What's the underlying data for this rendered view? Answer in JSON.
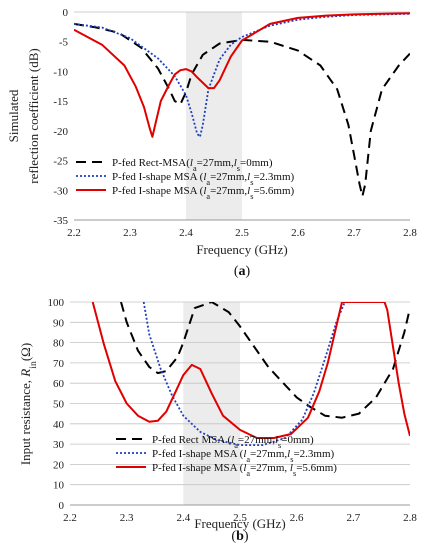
{
  "chart_data": [
    {
      "panel_label": [
        "(",
        "a",
        ")"
      ],
      "type": "line",
      "xlabel": "Frequency (GHz)",
      "ylabel": [
        "Simulated",
        "reflection coefficient (dB)"
      ],
      "xlim": [
        2.2,
        2.8
      ],
      "ylim": [
        -35,
        0
      ],
      "xticks": [
        "2.2",
        "2.3",
        "2.4",
        "2.5",
        "2.6",
        "2.7",
        "2.8"
      ],
      "yticks": [
        "0",
        "-5",
        "-10",
        "-15",
        "-20",
        "-25",
        "-30",
        "-35"
      ],
      "highlight_band": [
        2.4,
        2.5
      ],
      "grid": false,
      "legend_position": "bottom-left",
      "series": [
        {
          "name": [
            {
              "text": "P-fed Rect-MSA(",
              "style": "normal"
            },
            {
              "text": "l",
              "style": "italic"
            },
            {
              "text": "a",
              "style": "sub"
            },
            {
              "text": "=27mm,",
              "style": "normal"
            },
            {
              "text": "l",
              "style": "italic"
            },
            {
              "text": "s",
              "style": "sub"
            },
            {
              "text": "=0mm)",
              "style": "normal"
            }
          ],
          "color": "#000000",
          "dash": "long-dash",
          "x": [
            2.2,
            2.24,
            2.28,
            2.32,
            2.35,
            2.37,
            2.38,
            2.39,
            2.4,
            2.41,
            2.43,
            2.46,
            2.5,
            2.55,
            2.6,
            2.64,
            2.67,
            2.69,
            2.7,
            2.71,
            2.715,
            2.72,
            2.73,
            2.75,
            2.78,
            2.8
          ],
          "y": [
            -2,
            -2.6,
            -3.5,
            -6,
            -9.5,
            -13,
            -15,
            -15.5,
            -13.5,
            -10.5,
            -7.2,
            -5.3,
            -4.7,
            -5,
            -6.5,
            -9,
            -13,
            -19,
            -24,
            -29,
            -31,
            -29,
            -20,
            -13,
            -9,
            -7
          ]
        },
        {
          "name": [
            {
              "text": "P-fed I-shape MSA (",
              "style": "normal"
            },
            {
              "text": "l",
              "style": "italic"
            },
            {
              "text": "a",
              "style": "sub"
            },
            {
              "text": "=27mm,",
              "style": "normal"
            },
            {
              "text": "l",
              "style": "italic"
            },
            {
              "text": "s",
              "style": "sub"
            },
            {
              "text": "=2.3mm)",
              "style": "normal"
            }
          ],
          "color": "#1f3fbf",
          "dash": "dotted",
          "x": [
            2.2,
            2.25,
            2.3,
            2.35,
            2.38,
            2.4,
            2.41,
            2.42,
            2.425,
            2.43,
            2.44,
            2.46,
            2.48,
            2.5,
            2.55,
            2.6,
            2.65,
            2.7,
            2.75,
            2.8
          ],
          "y": [
            -2,
            -2.6,
            -4.4,
            -7.8,
            -10.8,
            -14,
            -17,
            -20.5,
            -21,
            -19,
            -13,
            -8,
            -5.5,
            -4.2,
            -2.3,
            -1.3,
            -0.8,
            -0.5,
            -0.4,
            -0.3
          ]
        },
        {
          "name": [
            {
              "text": "P-fed I-shape MSA (",
              "style": "normal"
            },
            {
              "text": "l",
              "style": "italic"
            },
            {
              "text": "a",
              "style": "sub"
            },
            {
              "text": "=27mm,",
              "style": "normal"
            },
            {
              "text": "l",
              "style": "italic"
            },
            {
              "text": "s",
              "style": "sub"
            },
            {
              "text": "=5.6mm)",
              "style": "normal"
            }
          ],
          "color": "#e00000",
          "dash": "solid",
          "x": [
            2.2,
            2.25,
            2.29,
            2.31,
            2.325,
            2.335,
            2.34,
            2.345,
            2.355,
            2.37,
            2.38,
            2.39,
            2.4,
            2.41,
            2.42,
            2.44,
            2.45,
            2.46,
            2.48,
            2.5,
            2.55,
            2.6,
            2.65,
            2.7,
            2.75,
            2.8
          ],
          "y": [
            -3,
            -5.5,
            -9,
            -12.5,
            -16,
            -19.5,
            -21,
            -19,
            -15,
            -12.2,
            -10.5,
            -9.8,
            -9.6,
            -10,
            -11,
            -12.8,
            -12.8,
            -11.5,
            -7.5,
            -4.8,
            -2,
            -1,
            -0.6,
            -0.4,
            -0.3,
            -0.2
          ]
        }
      ]
    },
    {
      "panel_label": [
        "(",
        "b",
        ")"
      ],
      "type": "line",
      "xlabel": "Frequency (GHz)",
      "ylabel": [
        {
          "text": "Input resistance, ",
          "style": "normal"
        },
        {
          "text": "R",
          "style": "italic"
        },
        {
          "text": "in",
          "style": "sub"
        },
        {
          "text": "(Ω)",
          "style": "normal"
        }
      ],
      "xlim": [
        2.2,
        2.8
      ],
      "ylim": [
        0,
        100
      ],
      "xticks": [
        "2.2",
        "2.3",
        "2.4",
        "2.5",
        "2.6",
        "2.7",
        "2.8"
      ],
      "yticks": [
        "0",
        "10",
        "20",
        "30",
        "40",
        "50",
        "60",
        "70",
        "80",
        "90",
        "100"
      ],
      "highlight_band": [
        2.4,
        2.5
      ],
      "grid": true,
      "legend_position": "bottom-center",
      "series": [
        {
          "name": [
            {
              "text": "P-fed Rect MSA (",
              "style": "normal"
            },
            {
              "text": "l",
              "style": "italic"
            },
            {
              "text": "a",
              "style": "sub"
            },
            {
              "text": "=27mm,",
              "style": "normal"
            },
            {
              "text": "l",
              "style": "italic"
            },
            {
              "text": "s",
              "style": "sub"
            },
            {
              "text": "=0mm)",
              "style": "normal"
            }
          ],
          "color": "#000000",
          "dash": "long-dash",
          "x": [
            2.29,
            2.3,
            2.32,
            2.34,
            2.355,
            2.37,
            2.39,
            2.4,
            2.42,
            2.45,
            2.48,
            2.5,
            2.55,
            2.6,
            2.62,
            2.65,
            2.68,
            2.71,
            2.74,
            2.77,
            2.79,
            2.8
          ],
          "y": [
            100,
            90,
            76,
            68,
            65,
            66,
            73,
            80,
            97,
            100,
            95,
            88,
            68,
            53,
            49,
            44,
            43,
            45,
            53,
            67,
            85,
            97
          ]
        },
        {
          "name": [
            {
              "text": "P-fed I-shape MSA (",
              "style": "normal"
            },
            {
              "text": "l",
              "style": "italic"
            },
            {
              "text": "a",
              "style": "sub"
            },
            {
              "text": "=27mm,",
              "style": "normal"
            },
            {
              "text": "l",
              "style": "italic"
            },
            {
              "text": "s",
              "style": "sub"
            },
            {
              "text": "=2.3mm)",
              "style": "normal"
            }
          ],
          "color": "#1f3fbf",
          "dash": "dotted",
          "x": [
            2.33,
            2.34,
            2.36,
            2.38,
            2.4,
            2.43,
            2.46,
            2.5,
            2.54,
            2.58,
            2.61,
            2.63,
            2.65,
            2.67,
            2.685
          ],
          "y": [
            100,
            84,
            67,
            54,
            44,
            36,
            32,
            29.5,
            29.5,
            33,
            42,
            55,
            72,
            90,
            100
          ]
        },
        {
          "name": [
            {
              "text": "P-fed I-shape MSA (",
              "style": "normal"
            },
            {
              "text": "l",
              "style": "italic"
            },
            {
              "text": "a",
              "style": "sub"
            },
            {
              "text": "=27mm, ",
              "style": "normal"
            },
            {
              "text": "l",
              "style": "italic"
            },
            {
              "text": "s",
              "style": "sub"
            },
            {
              "text": "=5.6mm)",
              "style": "normal"
            }
          ],
          "color": "#e00000",
          "dash": "solid",
          "x": [
            2.24,
            2.26,
            2.28,
            2.3,
            2.32,
            2.34,
            2.355,
            2.37,
            2.385,
            2.4,
            2.415,
            2.43,
            2.45,
            2.47,
            2.5,
            2.53,
            2.56,
            2.59,
            2.62,
            2.64,
            2.655,
            2.67,
            2.68,
            2.69,
            2.72,
            2.74,
            2.75,
            2.755,
            2.76,
            2.77,
            2.78,
            2.79,
            2.8
          ],
          "y": [
            100,
            79,
            61,
            50,
            44,
            41,
            41.5,
            46,
            55,
            64,
            69,
            67,
            55,
            44,
            37,
            33,
            33,
            35,
            43,
            56,
            70,
            88,
            100,
            100,
            100,
            100,
            100,
            100,
            96,
            78,
            60,
            45,
            34
          ]
        }
      ]
    }
  ]
}
